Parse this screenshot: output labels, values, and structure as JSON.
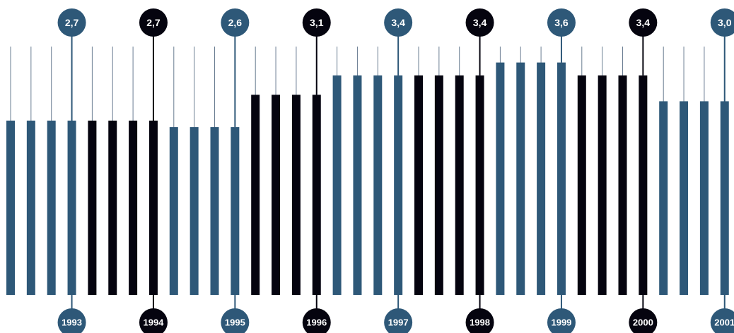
{
  "chart_data": {
    "type": "bar",
    "categories": [
      "1993",
      "1994",
      "1995",
      "1996",
      "1997",
      "1998",
      "1999",
      "2000",
      "2001"
    ],
    "values": [
      2.7,
      2.7,
      2.6,
      3.1,
      3.4,
      3.4,
      3.6,
      3.4,
      3.0
    ],
    "value_labels": [
      "2,7",
      "2,7",
      "2,6",
      "3,1",
      "3,4",
      "3,4",
      "3,6",
      "3,4",
      "3,0"
    ],
    "bars_per_year": 4,
    "colors": {
      "light": "#2e5878",
      "dark": "#05040f",
      "thin_line": "#6a7d92"
    },
    "year_colors": [
      "light",
      "dark",
      "light",
      "dark",
      "light",
      "dark",
      "light",
      "dark",
      "light"
    ],
    "ylim": [
      0,
      3.85
    ]
  }
}
